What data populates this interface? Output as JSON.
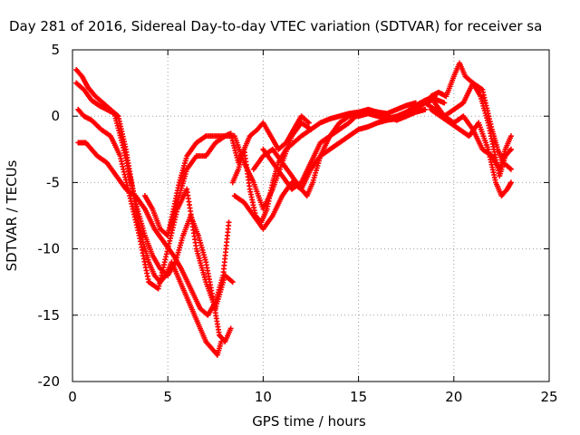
{
  "chart_data": {
    "type": "scatter",
    "title": "Day 281 of 2016, Sidereal Day-to-day VTEC variation (SDTVAR) for receiver sa",
    "xlabel": "GPS time / hours",
    "ylabel": "SDTVAR / TECUs",
    "xlim": [
      0,
      25
    ],
    "ylim": [
      -20,
      5
    ],
    "xticks": [
      0,
      5,
      10,
      15,
      20,
      25
    ],
    "yticks": [
      -20,
      -15,
      -10,
      -5,
      0,
      5
    ],
    "grid": true,
    "marker": "+",
    "color": "#ff0000",
    "series": [
      {
        "x": [
          0.2,
          0.5,
          0.8,
          1.2,
          1.6,
          2.0,
          2.4,
          2.8,
          3.1,
          3.4,
          3.7,
          4.0,
          4.3,
          4.6,
          4.9,
          5.2,
          5.5,
          5.8,
          6.1,
          6.4,
          6.7,
          7.0,
          7.3,
          7.6,
          7.8
        ],
        "y": [
          3.5,
          3.0,
          2.2,
          1.5,
          1.0,
          0.5,
          0.0,
          -2.5,
          -5.0,
          -7.5,
          -9.5,
          -11.0,
          -12.0,
          -12.5,
          -12.0,
          -11.0,
          -12.0,
          -13.0,
          -14.0,
          -15.0,
          -16.0,
          -17.0,
          -17.5,
          -18.0,
          -17.0
        ]
      },
      {
        "x": [
          0.2,
          0.6,
          1.0,
          1.4,
          1.8,
          2.2,
          2.6,
          3.0,
          3.4,
          3.8,
          4.2,
          4.6,
          5.0,
          5.4,
          5.8,
          6.2,
          6.6,
          7.0,
          7.4,
          7.7,
          8.0,
          8.3
        ],
        "y": [
          2.5,
          2.0,
          1.2,
          0.8,
          0.5,
          0.2,
          -2.0,
          -4.5,
          -7.0,
          -9.0,
          -10.5,
          -11.5,
          -12.0,
          -11.0,
          -9.0,
          -7.5,
          -9.0,
          -11.0,
          -14.0,
          -16.5,
          -17.0,
          -16.0
        ]
      },
      {
        "x": [
          0.3,
          0.6,
          1.0,
          1.5,
          2.0,
          2.5,
          3.0,
          3.5,
          4.0,
          4.5,
          5.0,
          5.5,
          6.0,
          6.5,
          7.0,
          7.5,
          8.0,
          8.4
        ],
        "y": [
          0.5,
          0.0,
          -0.3,
          -1.0,
          -1.5,
          -3.0,
          -6.0,
          -9.0,
          -12.5,
          -13.0,
          -10.0,
          -7.0,
          -5.5,
          -10.0,
          -12.5,
          -14.5,
          -12.0,
          -12.5
        ]
      },
      {
        "x": [
          0.3,
          0.5,
          0.7,
          1.3,
          1.8,
          2.3,
          2.8,
          3.3,
          3.8,
          4.3,
          4.8,
          5.3,
          5.7,
          6.2,
          6.7,
          7.1,
          7.5,
          7.9,
          8.2
        ],
        "y": [
          -2.0,
          -2.0,
          -2.0,
          -3.0,
          -3.5,
          -4.5,
          -5.5,
          -6.0,
          -7.0,
          -8.5,
          -9.5,
          -10.5,
          -11.5,
          -13.0,
          -14.5,
          -15.0,
          -14.0,
          -12.0,
          -8.0
        ]
      },
      {
        "x": [
          3.8,
          4.2,
          4.6,
          5.0,
          5.3,
          5.6,
          6.0,
          6.5,
          7.0,
          7.5,
          8.0,
          8.5,
          9.0,
          9.5,
          10.0,
          10.5,
          11.0,
          11.5,
          12.0,
          12.5
        ],
        "y": [
          -6.0,
          -7.0,
          -8.5,
          -9.0,
          -7.0,
          -5.0,
          -3.0,
          -2.0,
          -1.5,
          -1.5,
          -1.5,
          -1.5,
          -3.5,
          -5.0,
          -7.0,
          -5.5,
          -3.5,
          -1.5,
          -0.5,
          -1.0
        ]
      },
      {
        "x": [
          5.0,
          5.5,
          6.0,
          6.5,
          7.0,
          7.5,
          8.0,
          8.3,
          8.7,
          9.0,
          9.3,
          9.7,
          10.0,
          10.4,
          10.8,
          11.2,
          11.6,
          12.0,
          12.4
        ],
        "y": [
          -9.0,
          -6.5,
          -4.0,
          -3.0,
          -3.0,
          -2.0,
          -1.5,
          -1.3,
          -3.5,
          -2.5,
          -1.5,
          -1.0,
          -0.5,
          -1.5,
          -2.5,
          -2.0,
          -1.0,
          0.0,
          -0.5
        ]
      },
      {
        "x": [
          8.4,
          8.7,
          9.0,
          9.3,
          9.6,
          9.9,
          10.2,
          10.5,
          10.8,
          11.2,
          11.6,
          12.0,
          12.5,
          13.0,
          13.5,
          14.0,
          14.5,
          15.0,
          15.5,
          16.0,
          16.5,
          17.0,
          17.5,
          18.0
        ],
        "y": [
          -5.0,
          -4.0,
          -2.5,
          -5.5,
          -7.5,
          -8.0,
          -7.0,
          -5.0,
          -3.5,
          -2.5,
          -2.0,
          -1.5,
          -1.0,
          -0.5,
          -0.2,
          0.0,
          0.2,
          0.3,
          0.5,
          0.3,
          0.2,
          0.5,
          0.8,
          1.0
        ]
      },
      {
        "x": [
          8.5,
          9.0,
          9.5,
          10.0,
          10.5,
          11.0,
          11.5,
          12.0,
          12.5,
          13.0,
          13.5,
          14.0,
          14.5,
          15.0,
          15.5,
          16.0,
          16.5,
          17.0,
          17.5,
          18.0,
          18.5
        ],
        "y": [
          -6.0,
          -6.5,
          -7.5,
          -8.5,
          -7.5,
          -6.0,
          -5.0,
          -5.5,
          -4.0,
          -3.0,
          -2.5,
          -2.0,
          -1.5,
          -1.0,
          -0.8,
          -0.5,
          -0.3,
          -0.2,
          0.0,
          0.3,
          0.5
        ]
      },
      {
        "x": [
          9.5,
          10.0,
          10.5,
          11.0,
          11.5,
          12.0,
          12.3,
          12.6,
          13.0,
          13.5,
          14.0,
          14.5,
          15.0,
          15.5,
          16.0,
          16.5,
          17.0,
          17.5,
          18.0,
          18.5,
          19.0
        ],
        "y": [
          -4.0,
          -3.0,
          -2.5,
          -3.5,
          -4.5,
          -5.5,
          -6.0,
          -5.0,
          -3.0,
          -1.5,
          -0.5,
          0.0,
          0.0,
          0.2,
          0.0,
          -0.2,
          0.0,
          0.3,
          0.8,
          1.2,
          1.5
        ]
      },
      {
        "x": [
          10.0,
          10.5,
          11.0,
          11.5,
          12.0,
          12.5,
          13.0,
          13.5,
          14.0,
          14.5,
          15.0,
          15.5,
          16.0,
          16.5,
          17.0,
          17.5,
          18.0,
          18.5,
          19.0,
          19.5
        ],
        "y": [
          -2.5,
          -3.5,
          -4.5,
          -5.5,
          -5.0,
          -3.5,
          -2.0,
          -1.5,
          -1.0,
          -0.5,
          0.2,
          0.5,
          0.3,
          0.0,
          -0.3,
          0.0,
          0.5,
          1.0,
          1.3,
          1.0
        ]
      },
      {
        "x": [
          18.8,
          19.2,
          19.6,
          20.0,
          20.3,
          20.6,
          21.0,
          21.4,
          21.8,
          22.1,
          22.4,
          22.7,
          23.0
        ],
        "y": [
          1.5,
          1.8,
          1.5,
          3.0,
          4.0,
          3.0,
          2.5,
          1.5,
          -0.5,
          -2.5,
          -4.5,
          -3.0,
          -2.5
        ]
      },
      {
        "x": [
          18.5,
          19.0,
          19.5,
          20.0,
          20.5,
          21.0,
          21.5,
          22.0,
          22.3,
          22.6,
          23.0
        ],
        "y": [
          1.0,
          0.5,
          0.0,
          0.5,
          1.0,
          2.5,
          2.0,
          -1.0,
          -2.5,
          -3.5,
          -4.0
        ]
      },
      {
        "x": [
          18.8,
          19.3,
          19.8,
          20.3,
          20.8,
          21.3,
          21.8,
          22.2,
          22.5,
          22.8,
          23.0
        ],
        "y": [
          0.5,
          0.0,
          -0.5,
          -1.0,
          -1.5,
          -0.5,
          -2.5,
          -5.0,
          -6.0,
          -5.5,
          -5.0
        ]
      },
      {
        "x": [
          19.0,
          19.5,
          20.0,
          20.5,
          21.0,
          21.5,
          22.0,
          22.4,
          22.7,
          23.0
        ],
        "y": [
          1.0,
          0.0,
          -0.5,
          0.0,
          -1.0,
          -2.5,
          -3.0,
          -4.0,
          -2.5,
          -1.5
        ]
      }
    ]
  }
}
